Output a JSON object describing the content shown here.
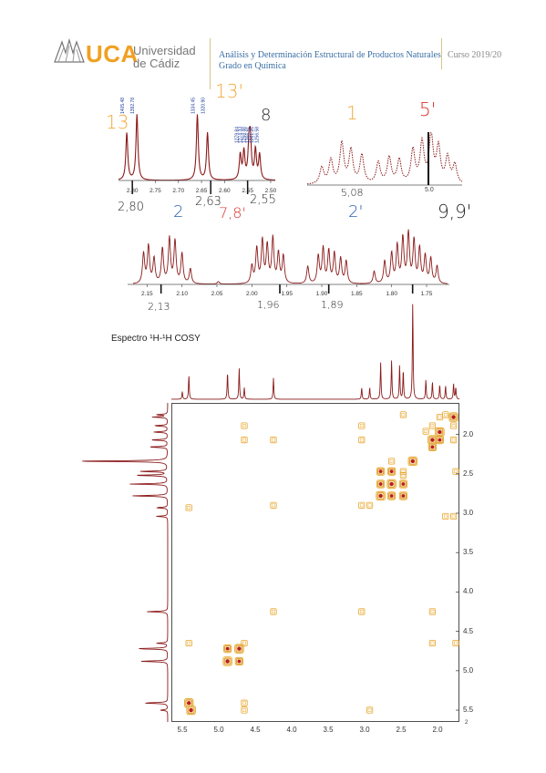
{
  "header": {
    "uni_name_1": "Universidad",
    "uni_name_2": "de Cádiz",
    "logo_text": "UCA",
    "course_title": "Análisis y Determinación Estructural de Productos Naturales",
    "course_subtitle": "Grado en Química",
    "course_year": "Curso 2019/20",
    "colors": {
      "uca_orange": "#f0a020",
      "uca_blue": "#1a5aa0",
      "text_blue": "#3a6ea5"
    }
  },
  "spectrum_a": {
    "x_ticks": [
      "2.80",
      "2.75",
      "2.70",
      "2.65",
      "2.60",
      "2.55",
      "2.50"
    ],
    "peak_labels": [
      "1405.48",
      "1392.78",
      "1334.45",
      "1320.90",
      "1279.84",
      "1274.33",
      "1268.46",
      "1266.91",
      "1261.26",
      "1256.58"
    ],
    "annotations": [
      "13",
      "13'",
      "8",
      "2,80",
      "2,63",
      "2,55"
    ]
  },
  "spectrum_b": {
    "x_ticks": [
      "5.0"
    ],
    "annotations": [
      "1",
      "5'",
      "5,08"
    ]
  },
  "spectrum_c": {
    "x_ticks": [
      "2.15",
      "2.10",
      "2.05",
      "2.00",
      "1.95",
      "1.90",
      "1.85",
      "1.80",
      "1.75"
    ],
    "annotations": [
      "2",
      "7,8'",
      "2'",
      "9,9'",
      "2,13",
      "1,96",
      "1,89"
    ]
  },
  "cosy": {
    "title": "Espectro ¹H-¹H COSY",
    "x_axis": {
      "ticks": [
        "5.5",
        "5.0",
        "4.5",
        "4.0",
        "3.5",
        "3.0",
        "2.5",
        "2.0"
      ],
      "min": 1.7,
      "max": 5.65,
      "unit": "ppm"
    },
    "y_axis": {
      "ticks": [
        "2.0",
        "2.5",
        "3.0",
        "3.5",
        "4.0",
        "4.5",
        "5.0",
        "5.5"
      ],
      "min": 1.6,
      "max": 5.65
    },
    "corner_label": "2",
    "peaks_ppm": [
      5.5,
      5.41,
      4.88,
      4.72,
      4.65,
      4.25,
      3.04,
      2.93,
      2.78,
      2.63,
      2.52,
      2.47,
      2.34,
      2.16,
      2.07,
      1.97,
      1.89,
      1.78,
      1.75
    ],
    "peak_heights": [
      0.08,
      0.25,
      0.28,
      0.32,
      0.12,
      0.22,
      0.12,
      0.12,
      0.38,
      0.4,
      0.35,
      0.3,
      1.0,
      0.2,
      0.18,
      0.15,
      0.14,
      0.16,
      0.12
    ],
    "diagonal": [
      [
        5.41,
        5.41
      ],
      [
        5.38,
        5.5
      ],
      [
        4.88,
        4.88
      ],
      [
        4.72,
        4.72
      ],
      [
        2.78,
        2.78
      ],
      [
        2.63,
        2.63
      ],
      [
        2.34,
        2.34
      ],
      [
        2.07,
        2.07
      ],
      [
        1.97,
        1.97
      ],
      [
        1.78,
        1.78
      ]
    ],
    "strong_cross": [
      [
        2.78,
        2.47
      ],
      [
        2.63,
        2.47
      ],
      [
        2.78,
        2.63
      ],
      [
        2.63,
        2.78
      ],
      [
        2.47,
        2.78
      ],
      [
        2.47,
        2.63
      ],
      [
        4.88,
        4.72
      ],
      [
        4.72,
        4.88
      ],
      [
        2.07,
        2.16
      ],
      [
        1.97,
        2.07
      ]
    ],
    "weak_cross": [
      [
        4.65,
        1.89
      ],
      [
        4.65,
        2.07
      ],
      [
        4.25,
        2.07
      ],
      [
        4.25,
        2.9
      ],
      [
        4.25,
        4.25
      ],
      [
        3.04,
        1.89
      ],
      [
        3.04,
        2.07
      ],
      [
        3.04,
        2.9
      ],
      [
        2.93,
        2.9
      ],
      [
        3.04,
        4.25
      ],
      [
        2.47,
        1.75
      ],
      [
        2.47,
        2.47
      ],
      [
        1.97,
        1.78
      ],
      [
        1.89,
        1.75
      ],
      [
        1.78,
        2.07
      ],
      [
        1.78,
        1.89
      ],
      [
        1.75,
        2.47
      ],
      [
        2.07,
        1.89
      ],
      [
        2.63,
        2.34
      ],
      [
        2.47,
        2.52
      ],
      [
        2.16,
        1.96
      ],
      [
        1.89,
        3.04
      ],
      [
        1.78,
        3.04
      ],
      [
        2.07,
        4.25
      ],
      [
        1.75,
        4.65
      ],
      [
        2.07,
        4.65
      ],
      [
        4.65,
        4.65
      ],
      [
        5.41,
        4.65
      ],
      [
        4.65,
        5.41
      ],
      [
        4.65,
        5.5
      ],
      [
        2.93,
        5.5
      ],
      [
        5.41,
        2.93
      ]
    ]
  }
}
